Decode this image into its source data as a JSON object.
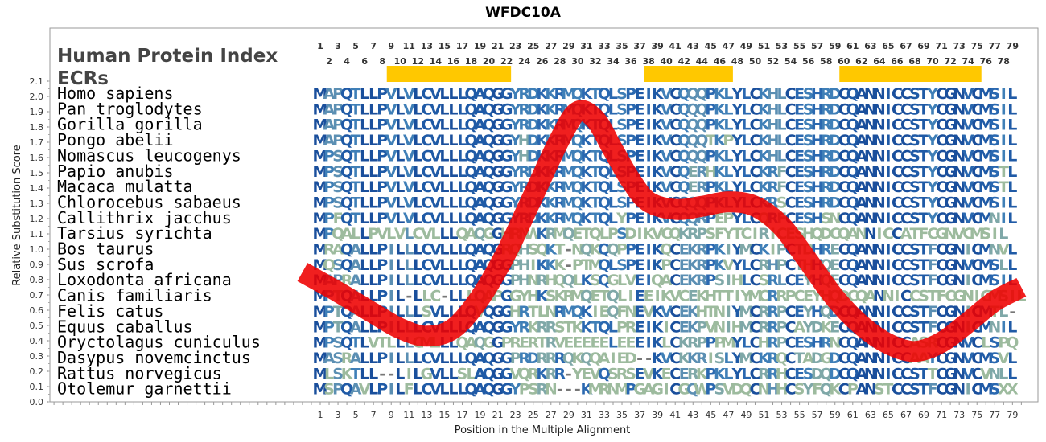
{
  "chart_data": {
    "type": "sequence-alignment",
    "title": "WFDC10A",
    "xlabel": "Position in the Multiple Alignment",
    "ylabel": "Relative Substitution Score",
    "ylim": [
      0.0,
      2.1
    ],
    "y_ticks": [
      0.0,
      0.1,
      0.2,
      0.3,
      0.4,
      0.5,
      0.6,
      0.7,
      0.8,
      0.9,
      1.0,
      1.1,
      1.2,
      1.3,
      1.4,
      1.5,
      1.6,
      1.7,
      1.8,
      1.9,
      2.0,
      2.1
    ],
    "xlim": [
      1,
      79
    ],
    "x_ticks_bottom": [
      1,
      3,
      5,
      7,
      9,
      11,
      13,
      15,
      17,
      19,
      21,
      23,
      25,
      27,
      29,
      31,
      33,
      35,
      37,
      39,
      41,
      43,
      45,
      47,
      49,
      51,
      53,
      55,
      57,
      59,
      61,
      63,
      65,
      67,
      69,
      71,
      73,
      75,
      77,
      79
    ],
    "x_ticks_top_odd": [
      1,
      3,
      5,
      7,
      9,
      11,
      13,
      15,
      17,
      19,
      21,
      23,
      25,
      27,
      29,
      31,
      33,
      35,
      37,
      39,
      41,
      43,
      45,
      47,
      49,
      51,
      53,
      55,
      57,
      59,
      61,
      63,
      65,
      67,
      69,
      71,
      73,
      75,
      77,
      79
    ],
    "x_ticks_top_even": [
      2,
      4,
      6,
      8,
      10,
      12,
      14,
      16,
      18,
      20,
      22,
      24,
      26,
      28,
      30,
      32,
      34,
      36,
      38,
      40,
      42,
      44,
      46,
      48,
      50,
      52,
      54,
      56,
      58,
      60,
      62,
      64,
      66,
      68,
      70,
      72,
      74,
      76,
      78
    ],
    "header_lines": [
      "Human Protein Index",
      "ECRs"
    ],
    "ecr_regions": [
      [
        9,
        22
      ],
      [
        38,
        47
      ],
      [
        60,
        75
      ]
    ],
    "ecr_color": "#FFC800",
    "curve_color": "#EE0000",
    "substitution_curve": {
      "x": [
        -1,
        3,
        7,
        10,
        13,
        16,
        19,
        22,
        25,
        28,
        30,
        32,
        34,
        36,
        38,
        41,
        44,
        47,
        50,
        53,
        56,
        59,
        62,
        65,
        68,
        71,
        74,
        77,
        80
      ],
      "y": [
        0.85,
        0.72,
        0.58,
        0.48,
        0.43,
        0.48,
        0.68,
        0.98,
        1.35,
        1.72,
        1.9,
        1.85,
        1.65,
        1.45,
        1.31,
        1.26,
        1.28,
        1.31,
        1.28,
        1.15,
        0.92,
        0.68,
        0.5,
        0.38,
        0.33,
        0.39,
        0.52,
        0.66,
        0.75
      ]
    },
    "sequences": [
      {
        "species": "Homo sapiens",
        "seq": "MAPQTLLPVLVLCVLLLQAQGGYRDKKRMQKTQLSPEIKVCQQQPKLYLCKHLCESHRDCQANNICCSTYCGNVCMSIL"
      },
      {
        "species": "Pan troglodytes",
        "seq": "MAPQTLLPVLVLCVLLLQAQGGYRDKKRMQKTQLSPEIKVCQQQPKLYLCKHLCESHRDCQANNICCSTYCGNVCMSIL"
      },
      {
        "species": "Gorilla gorilla",
        "seq": "MAPQTLLPVLVLCVLLLQAQGGYRDKKRMQKTQLSPEIKVCQQQPKLYLCKHLCESHRDCQANNICCSTYCGNVCMSIL"
      },
      {
        "species": "Pongo abelii",
        "seq": "MAPQTLLPVLVLCVLLLQAQGGYHDKKRMQKTQLSPEIKVCQQQTKPYLCKHLCESHRDCQANNICCSTYCGNVCMSIL"
      },
      {
        "species": "Nomascus leucogenys",
        "seq": "MPSQTLLPVLVLCVLLLQAQGGYHDKKRMQKTQLSPEIKVCQQQPKLYLCKHLCESHRDCQANNICCSTYCGNVCMSIL"
      },
      {
        "species": "Papio anubis",
        "seq": "MPSQTLLPVLVLCVLLLQAQGGYRDKKRMQKTQLSPEIKVCQERHKLYLCKRFCESHRDCQANNICCSTYCGNVCMSTL"
      },
      {
        "species": "Macaca mulatta",
        "seq": "MPSQTLLPVLVLCVLLLQAQGGYRDKKRMQKTQLSPEIKVCQERPKLYLCKRFCESHRDCQANNICCSTYCGNVCMSTL"
      },
      {
        "species": "Chlorocebus sabaeus",
        "seq": "MPSQTLLPVLVLCVLLLQAQGGYRDKKRMQKTQLSPEIKVCQQQPKLYLCKRSCESHRDCQANNICCSTYCGNVCMSIL"
      },
      {
        "species": "Callithrix jacchus",
        "seq": "MPFQTLLPVLVLCVLLLQAQGGYRDKKRMQKTQLYPEIKVCQQRPEPYLCQRFCESHSNCQANNICCSTYCGNVCMNIL"
      },
      {
        "species": "Tarsius syrichta",
        "seq": "MPQALLPVLVLCVLLLQAQGGHRNWKRMQETQLPSDIKVCQKRPSFYTCIRICESHQDCQANNICCATFCGNVCMSIL"
      },
      {
        "species": "Bos taurus",
        "seq": "MRAQALLPILLLCVLLLQAQGRQHSQKT-NQKQQPPEIKQCEKRPKIYMCKIPCTDHRECQANNICCSTFCGNICMNVL"
      },
      {
        "species": "Sus scrofa",
        "seq": "MQSQALLPILLLCVLLLQAQGGPHIKKK-PTMQLSPEIKPCEKRPKVYLCRHPCTHHQECQANNICCSTFCGNVCMSLL"
      },
      {
        "species": "Loxodonta africana",
        "seq": "MAPRALLPILLLCVLLLQAQGGPHNRHQQLKSQGLVEIQACEKRPSIHLCSRLCEYHQECQANNICCSTFCGNICMSIL"
      },
      {
        "species": "Canis familiaris",
        "seq": "MPTQALLPIL-LLC-LLLQAPGGYHKSKRMQETQLIEEIKVCEKHTTIYMCRRPCEYHQDCQANNICCSTFCGNICMSIL"
      },
      {
        "species": "Felis catus",
        "seq": "MPTQALLPILLLSVLLLQVQGGHRTLNRMQKIEQFNEVKVCEKHTNIYMCRRPCEYHQDCQANNICCSTFCGNICMTL-"
      },
      {
        "species": "Equus caballus",
        "seq": "MPTQALLPILLLCVLLLQAQGGYRKRRSTKKTQLPREIKICEKPVNIHMCRRPCAYDKECQANNICCSTFCGNICMNIL"
      },
      {
        "species": "Oryctolagus cuniculus",
        "seq": "MPSQTLVTLLLCMLLLQAQGGPRERTRVEEEEELEEEIKLCKRPPPMYLCHRPCESHRNCQANNICCASRCGNVCLSPQ"
      },
      {
        "species": "Dasypus novemcinctus",
        "seq": "MASRALLPILLLCVLLLQAQGGPRDRRRQKQQAIED--KVCKKRISLYMCKRQCTADGDCQANNICCAAYCGNVCMSVL"
      },
      {
        "species": "Rattus norvegicus",
        "seq": "MLSKTLL--LILGVLLSLAQGGVQRKRR-YEVQSRSEVKECERKPKLYLCRRHCESDQDCQANNICCSTTCGNVCVNLL"
      },
      {
        "species": "Otolemur garnettii",
        "seq": "MSPQAVLPILFLCVLLLQAQGGYPSRN---KMRNMPGAGICGQWPSVDQCNHHCSYFQKCPANSTCCSTFCGNICMSXX"
      }
    ]
  }
}
